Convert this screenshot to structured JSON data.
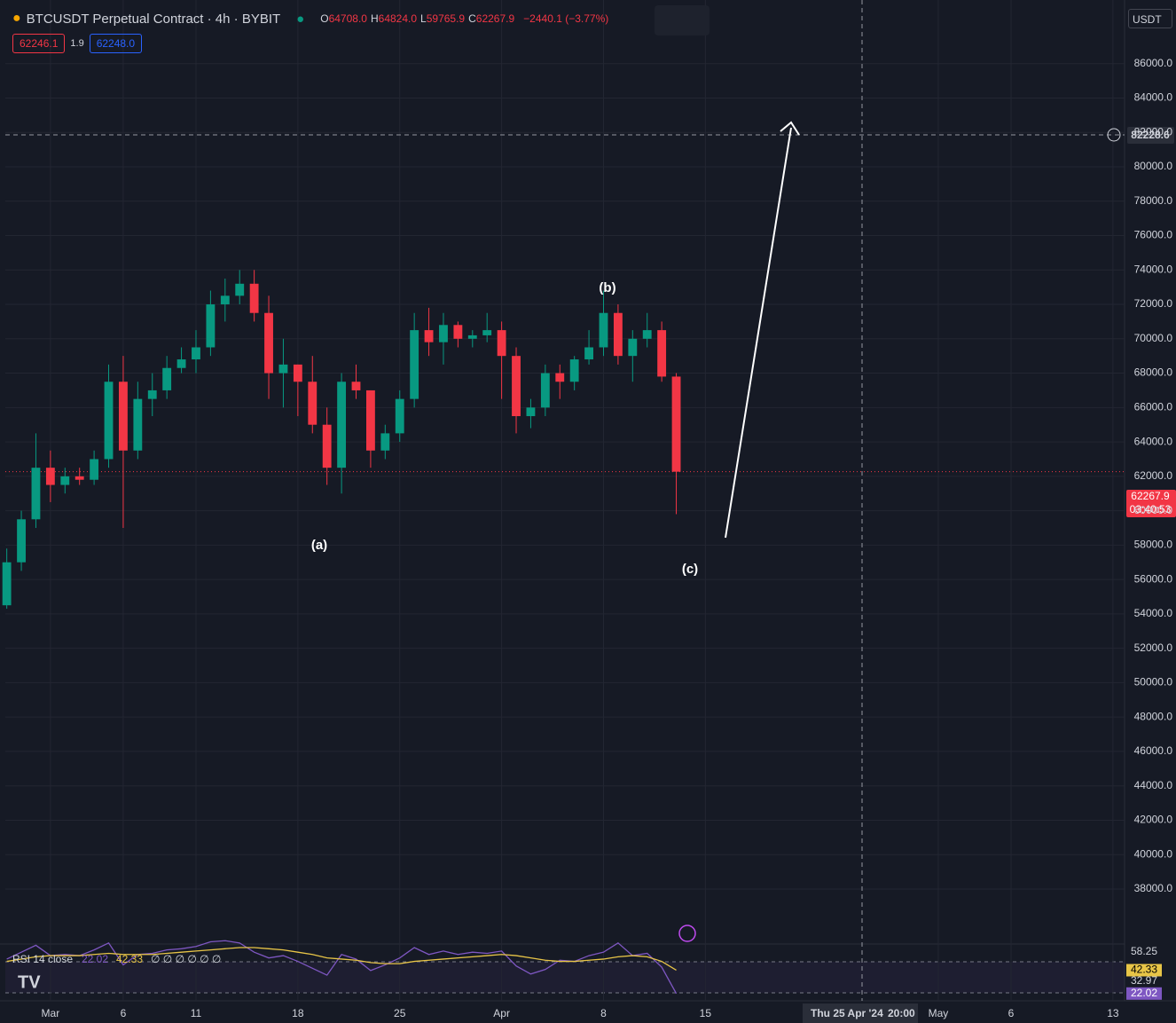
{
  "header": {
    "symbol": "BTCUSDT Perpetual Contract · 4h · BYBIT",
    "ohlc": [
      {
        "key": "O",
        "value": "64708.0"
      },
      {
        "key": "H",
        "value": "64824.0"
      },
      {
        "key": "L",
        "value": "59765.9"
      },
      {
        "key": "C",
        "value": "62267.9"
      }
    ],
    "change": "−2440.1 (−3.77%)",
    "sell": "62246.1",
    "spread": "1.9",
    "buy": "62248.0",
    "currency": "USDT"
  },
  "price_tag": {
    "price": "62267.9",
    "countdown": "03:40:53"
  },
  "crosshair": {
    "price": "82228.6",
    "time": "Thu 25 Apr '24",
    "clock": "20:00"
  },
  "waves": [
    "(a)",
    "(b)",
    "(c)"
  ],
  "chart_data": {
    "type": "candlestick",
    "up_color": "#089981",
    "down_color": "#f23645",
    "grid": true,
    "x": [
      -3,
      -2,
      -1,
      0,
      1,
      2,
      3,
      4,
      5,
      6,
      7,
      8,
      9,
      10,
      11,
      12,
      13,
      14,
      15,
      16,
      17,
      18,
      19,
      20,
      21,
      22,
      23,
      24,
      25,
      26,
      27,
      28,
      29,
      30,
      31,
      32,
      33,
      34,
      35,
      36,
      37,
      38,
      39,
      40,
      41,
      42,
      43
    ],
    "open": [
      54500,
      57000,
      59500,
      62500,
      61500,
      62000,
      61800,
      63000,
      67500,
      63500,
      66500,
      67000,
      68300,
      68800,
      69500,
      72000,
      72500,
      73200,
      71500,
      68000,
      68500,
      67500,
      65000,
      62500,
      67500,
      67000,
      63500,
      64500,
      66500,
      70500,
      69800,
      70800,
      70000,
      70200,
      70500,
      69000,
      65500,
      66000,
      68000,
      67500,
      68800,
      69500,
      71500,
      69000,
      70000,
      70500,
      67800
    ],
    "high": [
      57800,
      60000,
      64500,
      63500,
      62500,
      62500,
      63500,
      68500,
      69000,
      67500,
      68000,
      69000,
      69500,
      70500,
      72800,
      73500,
      74000,
      74000,
      72500,
      70000,
      68500,
      69000,
      66000,
      68000,
      68500,
      67000,
      65000,
      67000,
      71500,
      71800,
      71500,
      71000,
      70500,
      71500,
      71000,
      69500,
      66500,
      68500,
      68500,
      69000,
      70500,
      72800,
      72000,
      70500,
      71500,
      71000,
      68000
    ],
    "low": [
      54300,
      56500,
      59000,
      60500,
      61000,
      61500,
      61500,
      62500,
      59000,
      63000,
      65500,
      66500,
      68000,
      68000,
      69000,
      71000,
      72000,
      71000,
      66500,
      66000,
      65500,
      64500,
      61500,
      61000,
      66500,
      62500,
      63000,
      64000,
      66000,
      69000,
      68500,
      69500,
      69500,
      69800,
      66500,
      64500,
      64800,
      65500,
      66500,
      67000,
      68500,
      69000,
      68500,
      67500,
      69500,
      67500,
      59800
    ],
    "close": [
      57000,
      59500,
      62500,
      61500,
      62000,
      61800,
      63000,
      67500,
      63500,
      66500,
      67000,
      68300,
      68800,
      69500,
      72000,
      72500,
      73200,
      71500,
      68000,
      68500,
      67500,
      65000,
      62500,
      67500,
      67000,
      63500,
      64500,
      66500,
      70500,
      69800,
      70800,
      70000,
      70200,
      70500,
      69000,
      65500,
      66000,
      68000,
      67500,
      68800,
      69500,
      71500,
      69000,
      70000,
      70500,
      67800,
      62268
    ],
    "xlim": [
      -3.1,
      73.8
    ],
    "xticks": [
      {
        "value": 0,
        "label": "Mar"
      },
      {
        "value": 5,
        "label": "6"
      },
      {
        "value": 10,
        "label": "11"
      },
      {
        "value": 17,
        "label": "18"
      },
      {
        "value": 24,
        "label": "25"
      },
      {
        "value": 31,
        "label": "Apr"
      },
      {
        "value": 38,
        "label": "8"
      },
      {
        "value": 45,
        "label": "15"
      },
      {
        "value": 61,
        "label": "May"
      },
      {
        "value": 66,
        "label": "6"
      },
      {
        "value": 73,
        "label": "13"
      }
    ],
    "ylim": [
      34800,
      89700
    ],
    "yticks": [
      {
        "value": 38000,
        "label": "38000.0"
      },
      {
        "value": 40000,
        "label": "40000.0"
      },
      {
        "value": 42000,
        "label": "42000.0"
      },
      {
        "value": 44000,
        "label": "44000.0"
      },
      {
        "value": 46000,
        "label": "46000.0"
      },
      {
        "value": 48000,
        "label": "48000.0"
      },
      {
        "value": 50000,
        "label": "50000.0"
      },
      {
        "value": 52000,
        "label": "52000.0"
      },
      {
        "value": 54000,
        "label": "54000.0"
      },
      {
        "value": 56000,
        "label": "56000.0"
      },
      {
        "value": 58000,
        "label": "58000.0"
      },
      {
        "value": 60000,
        "label": "60000.0"
      },
      {
        "value": 62000,
        "label": "62000.0"
      },
      {
        "value": 64000,
        "label": "64000.0"
      },
      {
        "value": 66000,
        "label": "66000.0"
      },
      {
        "value": 68000,
        "label": "68000.0"
      },
      {
        "value": 70000,
        "label": "70000.0"
      },
      {
        "value": 72000,
        "label": "72000.0"
      },
      {
        "value": 74000,
        "label": "74000.0"
      },
      {
        "value": 76000,
        "label": "76000.0"
      },
      {
        "value": 78000,
        "label": "78000.0"
      },
      {
        "value": 80000,
        "label": "80000.0"
      },
      {
        "value": 82000,
        "label": "82000.0"
      },
      {
        "value": 84000,
        "label": "84000.0"
      },
      {
        "value": 86000,
        "label": "86000.0"
      }
    ],
    "rsi": {
      "name": "RSI 14 close",
      "color": "#7e57c2",
      "values": [
        52,
        58,
        64,
        55,
        56,
        55,
        60,
        66,
        47,
        56,
        57,
        60,
        61,
        63,
        67,
        68,
        66,
        58,
        53,
        55,
        50,
        44,
        38,
        56,
        52,
        42,
        47,
        53,
        62,
        56,
        59,
        56,
        58,
        57,
        59,
        46,
        39,
        43,
        51,
        50,
        55,
        58,
        66,
        55,
        57,
        45,
        22.02
      ]
    },
    "rsi_ma": {
      "color": "#e8c547",
      "values": [
        50,
        52,
        54,
        55,
        55,
        55,
        56,
        57,
        56,
        56,
        56,
        57,
        58,
        59,
        60,
        61,
        62,
        62,
        61,
        60,
        58,
        56,
        53,
        52,
        51,
        49,
        48,
        48,
        50,
        51,
        52,
        53,
        54,
        55,
        56,
        55,
        53,
        51,
        50,
        50,
        51,
        52,
        54,
        55,
        54,
        50,
        42.33
      ]
    },
    "rsi_ylim": [
      18,
      62
    ],
    "rsi_axis": [
      58.25,
      32.97
    ],
    "rsi_extra": "∅ ∅ ∅ ∅ ∅ ∅"
  }
}
